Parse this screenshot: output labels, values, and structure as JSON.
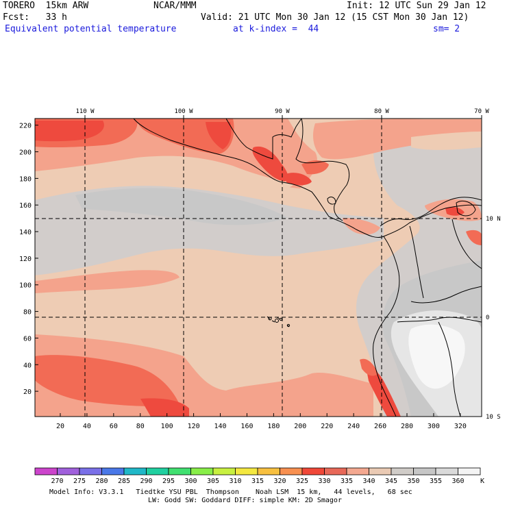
{
  "header": {
    "model_name": "TORERO  15km ARW",
    "institution": "NCAR/MMM",
    "init": "Init: 12 UTC Sun 29 Jan 12",
    "fcst": "Fcst:   33 h",
    "valid": "Valid: 21 UTC Mon 30 Jan 12 (15 CST Mon 30 Jan 12)",
    "field": "Equivalent potential temperature",
    "level": "at k-index =  44",
    "smoothing": "sm= 2"
  },
  "map": {
    "lon_labels": [
      "110 W",
      "100 W",
      "90 W",
      "80 W",
      "70 W"
    ],
    "lat_labels": [
      "10 N",
      "0",
      "10 S"
    ],
    "y_ticks": [
      "220",
      "200",
      "180",
      "160",
      "140",
      "120",
      "100",
      "80",
      "60",
      "40",
      "20"
    ],
    "x_ticks": [
      "20",
      "40",
      "60",
      "80",
      "100",
      "120",
      "140",
      "160",
      "180",
      "200",
      "220",
      "240",
      "260",
      "280",
      "300",
      "320"
    ],
    "palette": {
      "band_330": "#ee4a3e",
      "band_335": "#f26b55",
      "band_340": "#f4a38c",
      "band_345": "#eeccb4",
      "band_350": "#d2cdcb",
      "band_355": "#c8c8c8",
      "band_360": "#e6e6e6",
      "band_high": "#f7f7f7"
    }
  },
  "colorbar": {
    "unit": "K",
    "labels": [
      "270",
      "275",
      "280",
      "285",
      "290",
      "295",
      "300",
      "305",
      "310",
      "315",
      "320",
      "325",
      "330",
      "335",
      "340",
      "345",
      "350",
      "355",
      "360"
    ],
    "colors": [
      "#cc44cc",
      "#a060dc",
      "#7a70e8",
      "#4a78e8",
      "#20b8c8",
      "#20d0a0",
      "#40e070",
      "#88ee48",
      "#c8f040",
      "#f4e840",
      "#f8c040",
      "#f89050",
      "#f04838",
      "#e86858",
      "#f4a890",
      "#eacab4",
      "#d0ccc8",
      "#c6c6c6",
      "#dadada",
      "#f4f4f4"
    ]
  },
  "footer": {
    "line1": "Model Info: V3.3.1   Tiedtke YSU PBL  Thompson    Noah LSM  15 km,   44 levels,   68 sec",
    "line2": "LW: Godd SW: Goddard DIFF: simple KM: 2D Smagor"
  }
}
